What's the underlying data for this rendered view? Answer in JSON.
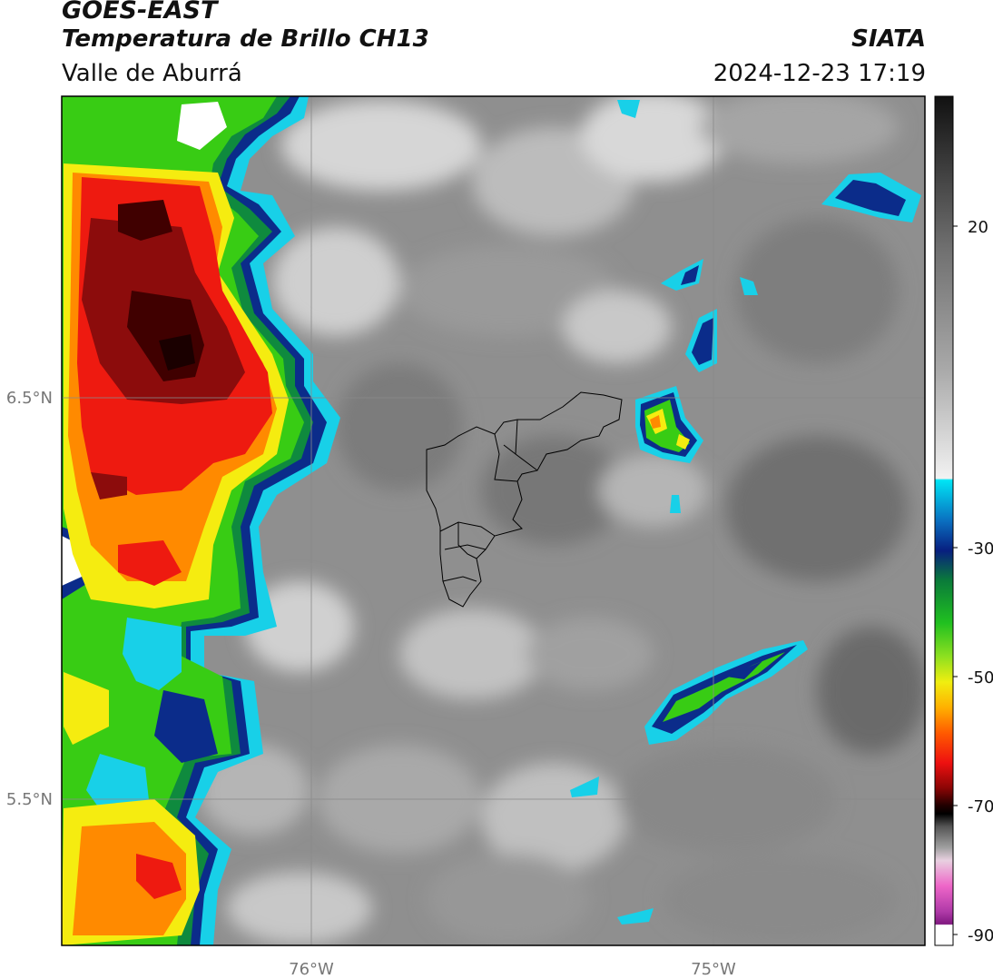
{
  "header": {
    "satellite": "GOES-EAST",
    "product": "Temperatura de Brillo CH13",
    "region": "Valle de Aburrá",
    "brand": "SIATA",
    "datetime": "2024-12-23 17:19"
  },
  "map": {
    "lat_ticks": [
      "6.5°N",
      "5.5°N"
    ],
    "lon_ticks": [
      "76°W",
      "75°W"
    ],
    "colorbar_ticks": [
      "20",
      "-30",
      "-50",
      "-70",
      "-90"
    ]
  },
  "colors": {
    "cloud_cold_1": "#400000",
    "cloud_cold_2": "#8c0c0c",
    "cloud_red": "#ee1a10",
    "cloud_orange": "#ff8a00",
    "cloud_yellow": "#f5ec10",
    "cloud_green": "#38cc14",
    "cloud_darkgreen": "#0f8a3e",
    "cloud_blue": "#0b2c8a",
    "cloud_cyan": "#18d0e8",
    "background_gray": "#8f8f8f"
  }
}
